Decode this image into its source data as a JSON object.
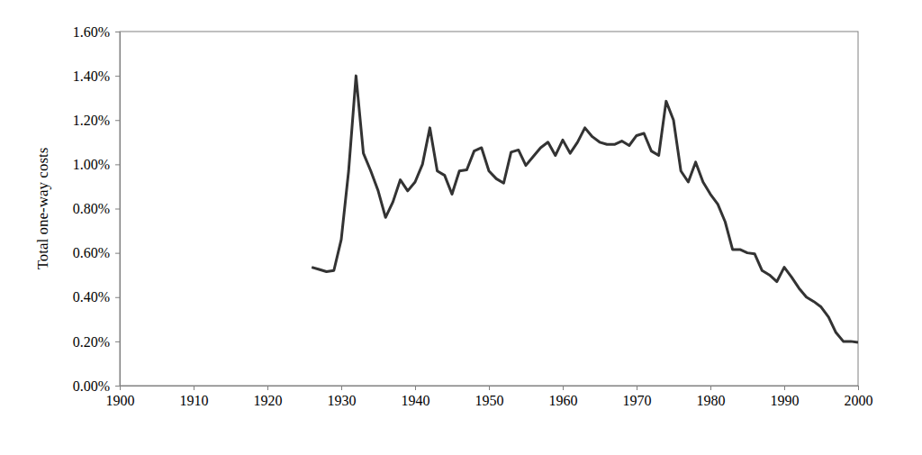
{
  "chart_data": {
    "type": "line",
    "y_label": "Total one-way costs",
    "x": [
      1926,
      1927,
      1928,
      1929,
      1930,
      1931,
      1932,
      1933,
      1934,
      1935,
      1936,
      1937,
      1938,
      1939,
      1940,
      1941,
      1942,
      1943,
      1944,
      1945,
      1946,
      1947,
      1948,
      1949,
      1950,
      1951,
      1952,
      1953,
      1954,
      1955,
      1956,
      1957,
      1958,
      1959,
      1960,
      1961,
      1962,
      1963,
      1964,
      1965,
      1966,
      1967,
      1968,
      1969,
      1970,
      1971,
      1972,
      1973,
      1974,
      1975,
      1976,
      1977,
      1978,
      1979,
      1980,
      1981,
      1982,
      1983,
      1984,
      1985,
      1986,
      1987,
      1988,
      1989,
      1990,
      1991,
      1992,
      1993,
      1994,
      1995,
      1996,
      1997,
      1998,
      1999,
      2000
    ],
    "values": [
      0.535,
      0.525,
      0.515,
      0.52,
      0.66,
      0.97,
      1.4,
      1.05,
      0.97,
      0.88,
      0.76,
      0.83,
      0.93,
      0.88,
      0.92,
      1.0,
      1.165,
      0.97,
      0.95,
      0.865,
      0.97,
      0.975,
      1.06,
      1.075,
      0.97,
      0.935,
      0.915,
      1.055,
      1.065,
      0.995,
      1.035,
      1.075,
      1.1,
      1.04,
      1.11,
      1.05,
      1.1,
      1.165,
      1.125,
      1.1,
      1.09,
      1.09,
      1.105,
      1.085,
      1.13,
      1.14,
      1.06,
      1.04,
      1.285,
      1.2,
      0.97,
      0.92,
      1.01,
      0.92,
      0.865,
      0.82,
      0.74,
      0.615,
      0.615,
      0.6,
      0.595,
      0.52,
      0.5,
      0.47,
      0.535,
      0.49,
      0.44,
      0.4,
      0.38,
      0.355,
      0.31,
      0.24,
      0.2,
      0.2,
      0.195
    ],
    "color": "#333333",
    "xlim": [
      1900,
      2000
    ],
    "xticks": [
      1900,
      1910,
      1920,
      1930,
      1940,
      1950,
      1960,
      1970,
      1980,
      1990,
      2000
    ],
    "ylim": [
      0,
      1.6
    ],
    "yticks": [
      {
        "value": 0,
        "label": "0.00%"
      },
      {
        "value": 0.2,
        "label": "0.20%"
      },
      {
        "value": 0.4,
        "label": "0.40%"
      },
      {
        "value": 0.6,
        "label": "0.60%"
      },
      {
        "value": 0.8,
        "label": "0.80%"
      },
      {
        "value": 1.0,
        "label": "1.00%"
      },
      {
        "value": 1.2,
        "label": "1.20%"
      },
      {
        "value": 1.4,
        "label": "1.40%"
      },
      {
        "value": 1.6,
        "label": "1.60%"
      }
    ],
    "grid": false
  }
}
